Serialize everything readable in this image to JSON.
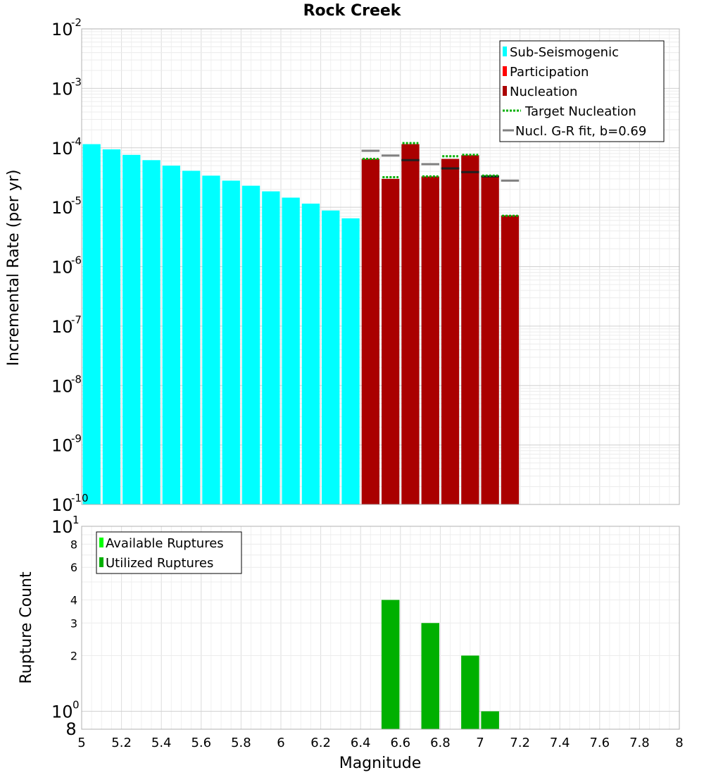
{
  "colors": {
    "sub_seismogenic": "#00ffff",
    "participation": "#ff0000",
    "nucleation": "#aa0000",
    "target_nucleation": "#00b000",
    "gr_fit": "#808080",
    "available_ruptures": "#00ff00",
    "utilized_ruptures": "#00b000"
  },
  "chart_data": [
    {
      "type": "bar",
      "title": "Rock Creek",
      "xlabel": "",
      "ylabel": "Incremental Rate (per yr)",
      "xlim": [
        5,
        8
      ],
      "ylim": [
        1e-10,
        0.01
      ],
      "yscale": "log",
      "grid": true,
      "legend_position": "top-right",
      "y_ticks": [
        {
          "base": "10",
          "exp": "-2",
          "value": 0.01
        },
        {
          "base": "10",
          "exp": "-3",
          "value": 0.001
        },
        {
          "base": "10",
          "exp": "-4",
          "value": 0.0001
        },
        {
          "base": "10",
          "exp": "-5",
          "value": 1e-05
        },
        {
          "base": "10",
          "exp": "-6",
          "value": 1e-06
        },
        {
          "base": "10",
          "exp": "-7",
          "value": 1e-07
        },
        {
          "base": "10",
          "exp": "-8",
          "value": 1e-08
        },
        {
          "base": "10",
          "exp": "-9",
          "value": 1e-09
        },
        {
          "base": "10",
          "exp": "-10",
          "value": 1e-10
        }
      ],
      "series": [
        {
          "name": "Sub-Seismogenic",
          "kind": "bar",
          "x": [
            5.05,
            5.15,
            5.25,
            5.35,
            5.45,
            5.55,
            5.65,
            5.75,
            5.85,
            5.95,
            6.05,
            6.15,
            6.25,
            6.35
          ],
          "values": [
            0.000115,
            9.4e-05,
            7.6e-05,
            6.2e-05,
            5e-05,
            4.1e-05,
            3.4e-05,
            2.8e-05,
            2.3e-05,
            1.85e-05,
            1.45e-05,
            1.15e-05,
            8.8e-06,
            6.5e-06
          ]
        },
        {
          "name": "Participation",
          "kind": "bar",
          "x": [],
          "values": []
        },
        {
          "name": "Nucleation",
          "kind": "bar",
          "x": [
            6.45,
            6.55,
            6.65,
            6.75,
            6.85,
            6.95,
            7.05,
            7.15
          ],
          "values": [
            6.5e-05,
            3e-05,
            0.000115,
            3.3e-05,
            6.5e-05,
            7.5e-05,
            3.3e-05,
            7.3e-06
          ]
        },
        {
          "name": "Target Nucleation",
          "kind": "step-dotted",
          "x": [
            6.45,
            6.55,
            6.65,
            6.75,
            6.85,
            6.95,
            7.05,
            7.15
          ],
          "values": [
            6.5e-05,
            3.2e-05,
            0.00012,
            3.3e-05,
            7.2e-05,
            7.6e-05,
            3.4e-05,
            7.2e-06
          ]
        },
        {
          "name": "Nucl. G-R fit, b=0.69",
          "kind": "step",
          "x": [
            6.45,
            6.55,
            6.65,
            6.75,
            6.85,
            6.95,
            7.05,
            7.15
          ],
          "values": [
            8.9e-05,
            7.4e-05,
            6.2e-05,
            5.3e-05,
            4.5e-05,
            3.9e-05,
            3.3e-05,
            2.8e-05
          ]
        }
      ],
      "legend": [
        "Sub-Seismogenic",
        "Participation",
        "Nucleation",
        "Target Nucleation",
        "Nucl. G-R fit, b=0.69"
      ]
    },
    {
      "type": "bar",
      "title": "",
      "xlabel": "Magnitude",
      "ylabel": "Rupture Count",
      "xlim": [
        5,
        8
      ],
      "ylim": [
        0.8,
        10
      ],
      "yscale": "log",
      "grid": true,
      "legend_position": "top-left",
      "x_ticks": [
        "5",
        "5.2",
        "5.4",
        "5.6",
        "5.8",
        "6",
        "6.2",
        "6.4",
        "6.6",
        "6.8",
        "7",
        "7.2",
        "7.4",
        "7.6",
        "7.8",
        "8"
      ],
      "y_major_ticks": [
        {
          "base": "10",
          "exp": "1",
          "value": 10
        },
        {
          "base": "10",
          "exp": "0",
          "value": 1
        }
      ],
      "y_minor_ticks": [
        {
          "label": "8",
          "value": 8
        },
        {
          "label": "6",
          "value": 6
        },
        {
          "label": "4",
          "value": 4
        },
        {
          "label": "3",
          "value": 3
        },
        {
          "label": "2",
          "value": 2
        }
      ],
      "y_min_label": {
        "label": "8",
        "value": 0.8
      },
      "series": [
        {
          "name": "Available Ruptures",
          "x": [
            6.55,
            6.75,
            6.95,
            7.05
          ],
          "values": [
            4,
            3,
            2,
            1
          ]
        },
        {
          "name": "Utilized Ruptures",
          "x": [
            6.55,
            6.75,
            6.95,
            7.05
          ],
          "values": [
            4,
            3,
            2,
            1
          ]
        }
      ],
      "legend": [
        "Available Ruptures",
        "Utilized Ruptures"
      ]
    }
  ]
}
